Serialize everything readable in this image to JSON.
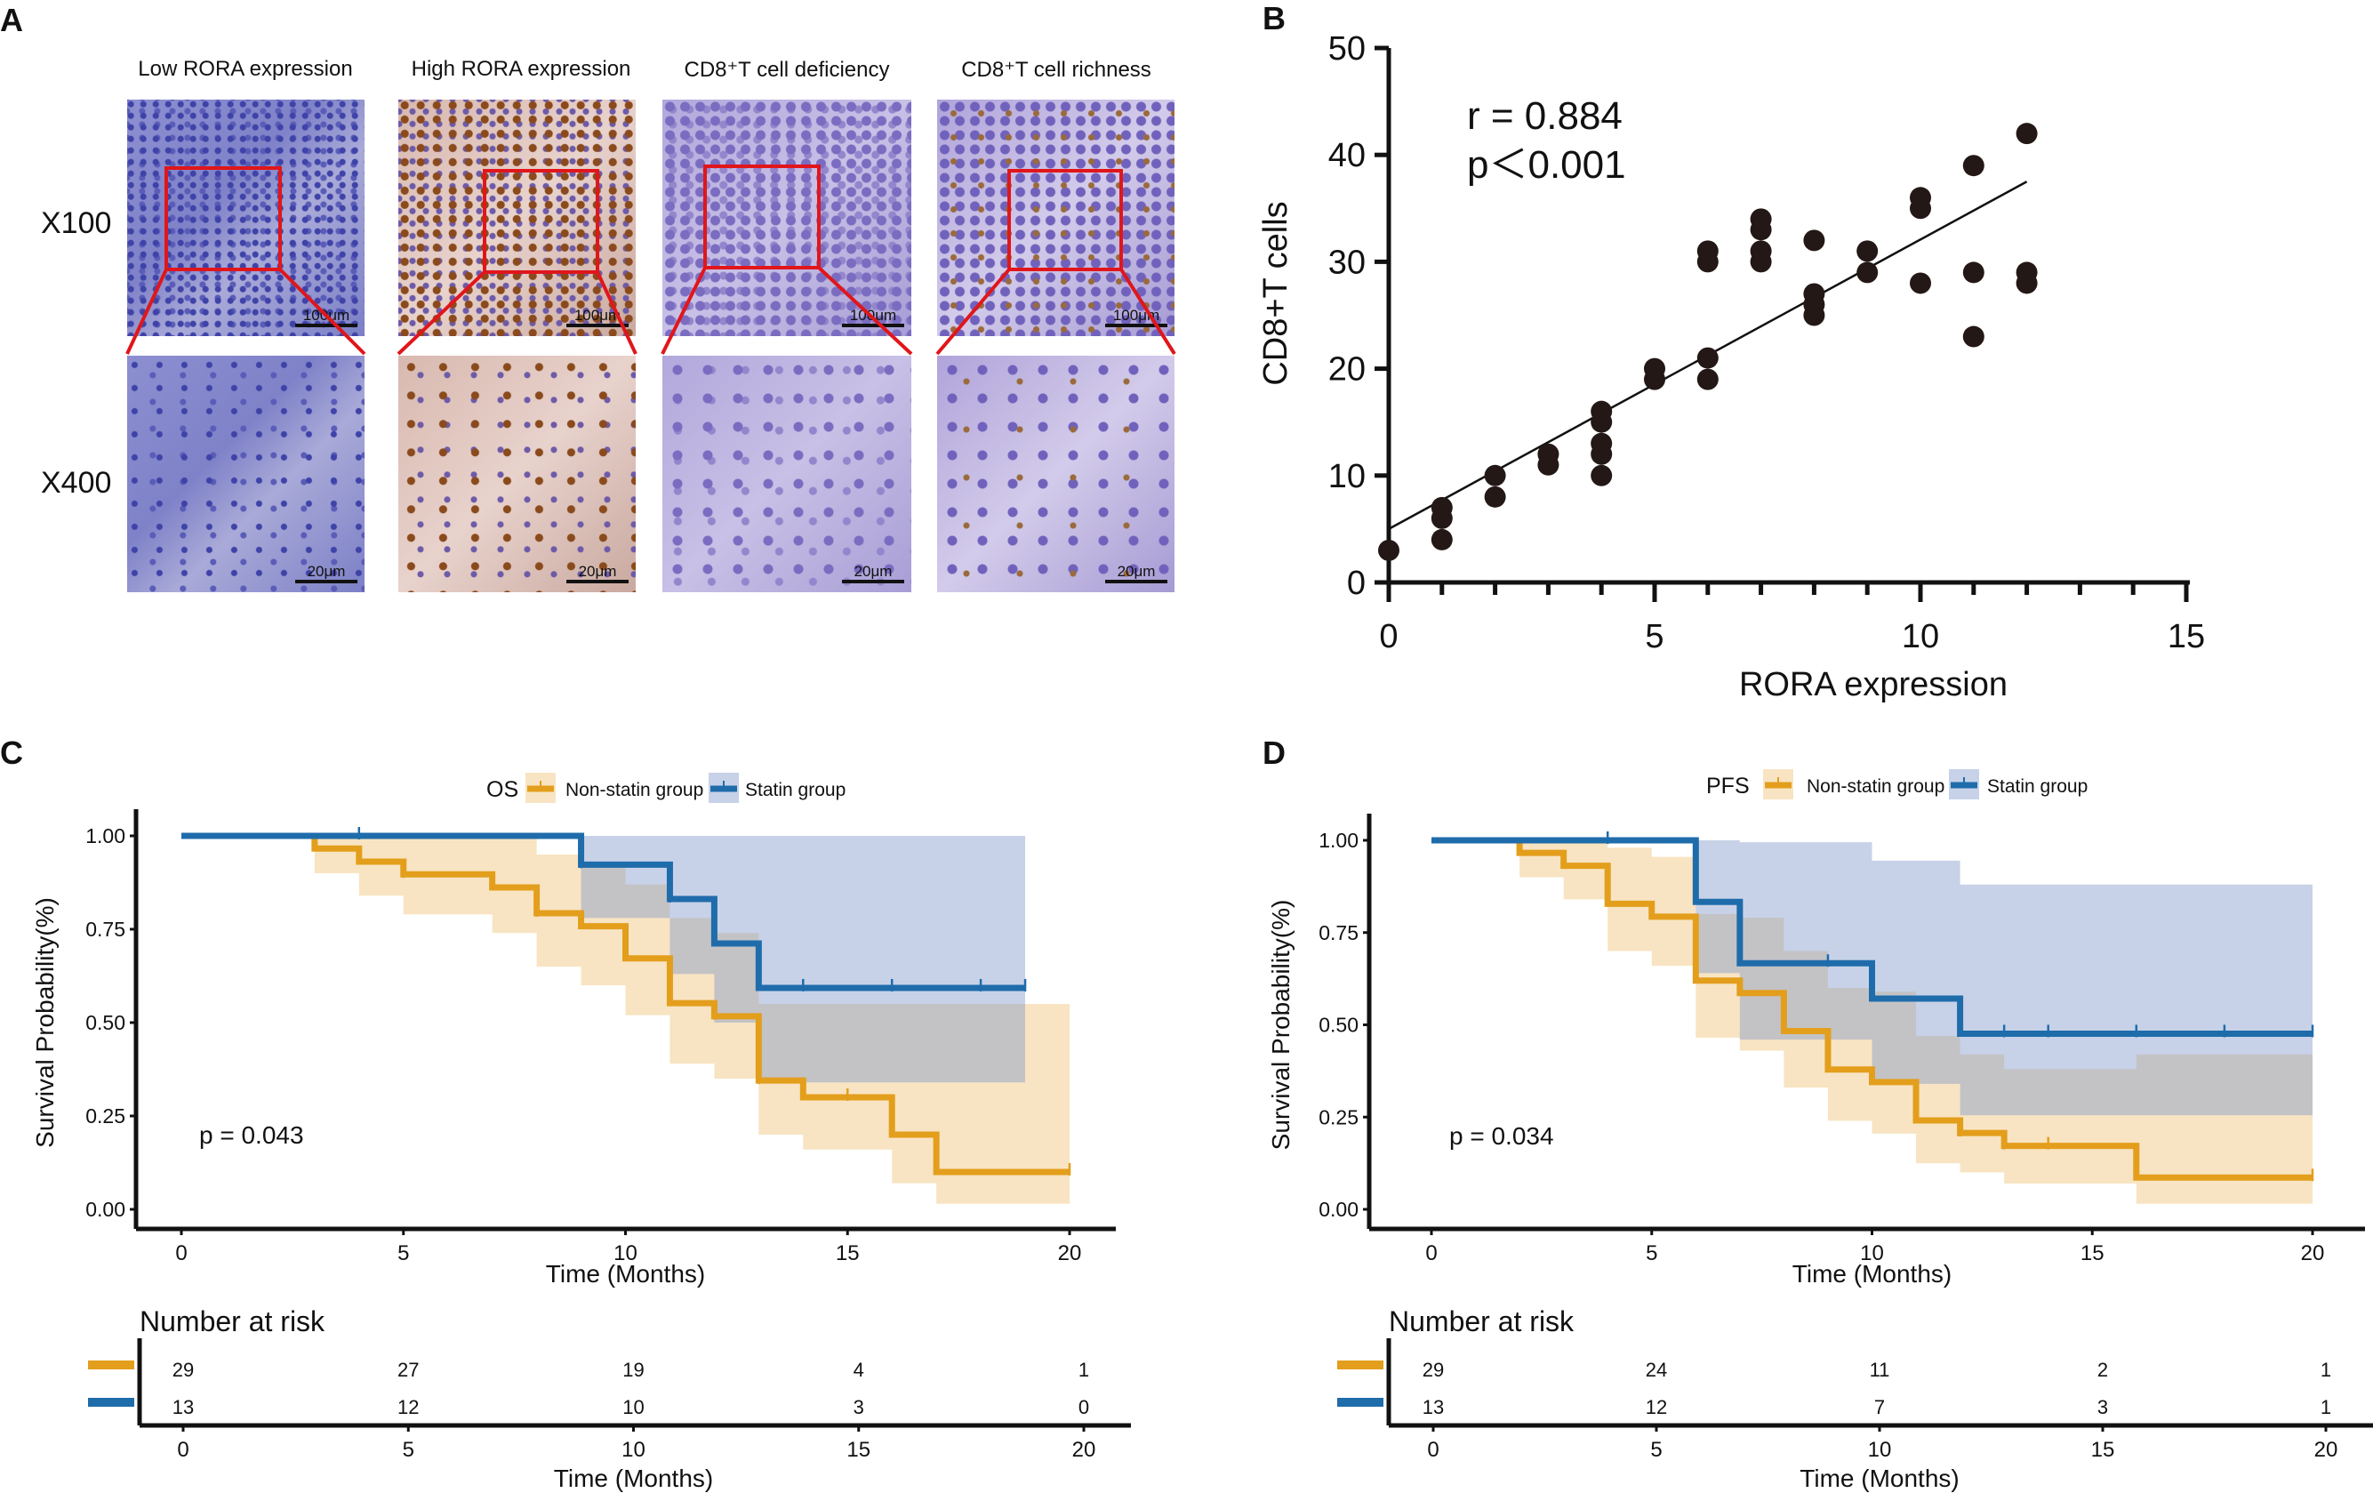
{
  "panel_letters": {
    "a": "A",
    "b": "B",
    "c": "C",
    "d": "D"
  },
  "panel_a": {
    "columns": [
      "Low RORA expression",
      "High RORA expression",
      "CD8⁺T cell deficiency",
      "CD8⁺T cell richness"
    ],
    "rows": [
      "X100",
      "X400"
    ],
    "scale_bars": {
      "x100": "100μm",
      "x400": "20μm"
    },
    "box_color": "#e0161b"
  },
  "chart_data": [
    {
      "panel": "B",
      "type": "scatter",
      "xlabel": "RORA expression",
      "ylabel": "CD8+T cells",
      "xlim": [
        0,
        15
      ],
      "ylim": [
        0,
        50
      ],
      "xticks": [
        "0",
        "5",
        "10",
        "15"
      ],
      "yticks": [
        "0",
        "10",
        "20",
        "30",
        "40",
        "50"
      ],
      "annotation": {
        "r": "r = 0.884",
        "p": "p＜0.001"
      },
      "points": [
        [
          0,
          3
        ],
        [
          1,
          7
        ],
        [
          1,
          6
        ],
        [
          1,
          4
        ],
        [
          2,
          10
        ],
        [
          2,
          8
        ],
        [
          3,
          12
        ],
        [
          3,
          11
        ],
        [
          4,
          16
        ],
        [
          4,
          15
        ],
        [
          4,
          13
        ],
        [
          4,
          12
        ],
        [
          4,
          10
        ],
        [
          5,
          20
        ],
        [
          5,
          19
        ],
        [
          6,
          31
        ],
        [
          6,
          30
        ],
        [
          6,
          21
        ],
        [
          6,
          19
        ],
        [
          7,
          34
        ],
        [
          7,
          33
        ],
        [
          7,
          31
        ],
        [
          7,
          30
        ],
        [
          8,
          32
        ],
        [
          8,
          27
        ],
        [
          8,
          26
        ],
        [
          8,
          25
        ],
        [
          9,
          31
        ],
        [
          9,
          29
        ],
        [
          10,
          36
        ],
        [
          10,
          35
        ],
        [
          10,
          28
        ],
        [
          11,
          39
        ],
        [
          11,
          29
        ],
        [
          11,
          23
        ],
        [
          12,
          42
        ],
        [
          12,
          29
        ],
        [
          12,
          28
        ]
      ],
      "fit_line": [
        [
          0,
          5
        ],
        [
          12,
          37.5
        ]
      ],
      "point_color": "#231816"
    },
    {
      "panel": "C",
      "type": "line",
      "title": "OS",
      "xlabel": "Time (Months)",
      "ylabel": "Survival Probability(%)",
      "xlim": [
        0,
        20
      ],
      "ylim": [
        0,
        1
      ],
      "xticks": [
        "0",
        "5",
        "10",
        "15",
        "20"
      ],
      "yticks": [
        "0.00",
        "0.25",
        "0.50",
        "0.75",
        "1.00"
      ],
      "pvalue": "p = 0.043",
      "series": [
        {
          "name": "Non-statin group",
          "color": "#e39e1c",
          "band": "rgba(240,196,120,0.45)",
          "end": 20,
          "steps": [
            [
              0,
              1
            ],
            [
              3,
              0.966
            ],
            [
              4,
              0.931
            ],
            [
              5,
              0.897
            ],
            [
              7,
              0.862
            ],
            [
              8,
              0.793
            ],
            [
              9,
              0.758
            ],
            [
              10,
              0.672
            ],
            [
              11,
              0.552
            ],
            [
              12,
              0.517
            ],
            [
              13,
              0.345
            ],
            [
              14,
              0.3
            ],
            [
              16,
              0.2
            ],
            [
              17,
              0.1
            ]
          ],
          "lower": [
            [
              0,
              1
            ],
            [
              3,
              0.9
            ],
            [
              4,
              0.84
            ],
            [
              5,
              0.79
            ],
            [
              7,
              0.74
            ],
            [
              8,
              0.65
            ],
            [
              9,
              0.6
            ],
            [
              10,
              0.52
            ],
            [
              11,
              0.39
            ],
            [
              12,
              0.35
            ],
            [
              13,
              0.2
            ],
            [
              14,
              0.16
            ],
            [
              16,
              0.07
            ],
            [
              17,
              0.015
            ]
          ],
          "upper": [
            [
              0,
              1
            ],
            [
              8,
              0.95
            ],
            [
              9,
              0.92
            ],
            [
              10,
              0.87
            ],
            [
              11,
              0.78
            ],
            [
              12,
              0.74
            ],
            [
              13,
              0.55
            ]
          ],
          "censored": [
            5,
            8,
            12,
            13,
            15,
            20
          ]
        },
        {
          "name": "Statin group",
          "color": "#1f6cab",
          "band": "rgba(130,155,205,0.45)",
          "end": 19,
          "steps": [
            [
              0,
              1
            ],
            [
              9,
              0.923
            ],
            [
              11,
              0.831
            ],
            [
              12,
              0.712
            ],
            [
              13,
              0.593
            ]
          ],
          "lower": [
            [
              0,
              1
            ],
            [
              9,
              0.78
            ],
            [
              11,
              0.63
            ],
            [
              12,
              0.5
            ],
            [
              13,
              0.34
            ]
          ],
          "upper": [
            [
              0,
              1
            ]
          ],
          "censored": [
            4,
            9,
            11,
            14,
            16,
            18,
            19
          ]
        }
      ],
      "risk_table": {
        "title": "Number at risk",
        "xlabel": "Time (Months)",
        "xticks": [
          "0",
          "5",
          "10",
          "15",
          "20"
        ],
        "rows": [
          [
            "29",
            "27",
            "19",
            "4",
            "1"
          ],
          [
            "13",
            "12",
            "10",
            "3",
            "0"
          ]
        ]
      }
    },
    {
      "panel": "D",
      "type": "line",
      "title": "PFS",
      "xlabel": "Time (Months)",
      "ylabel": "Survival Probability(%)",
      "xlim": [
        0,
        20
      ],
      "ylim": [
        0,
        1
      ],
      "xticks": [
        "0",
        "5",
        "10",
        "15",
        "20"
      ],
      "yticks": [
        "0.00",
        "0.25",
        "0.50",
        "0.75",
        "1.00"
      ],
      "pvalue": "p = 0.034",
      "series": [
        {
          "name": "Non-statin group",
          "color": "#e39e1c",
          "band": "rgba(240,196,120,0.45)",
          "end": 20,
          "steps": [
            [
              0,
              1
            ],
            [
              2,
              0.966
            ],
            [
              3,
              0.931
            ],
            [
              4,
              0.828
            ],
            [
              5,
              0.793
            ],
            [
              6,
              0.62
            ],
            [
              7,
              0.586
            ],
            [
              8,
              0.483
            ],
            [
              9,
              0.379
            ],
            [
              10,
              0.345
            ],
            [
              11,
              0.241
            ],
            [
              12,
              0.207
            ],
            [
              13,
              0.172
            ],
            [
              16,
              0.086
            ]
          ],
          "lower": [
            [
              0,
              1
            ],
            [
              2,
              0.9
            ],
            [
              3,
              0.84
            ],
            [
              4,
              0.7
            ],
            [
              5,
              0.66
            ],
            [
              6,
              0.465
            ],
            [
              7,
              0.43
            ],
            [
              8,
              0.33
            ],
            [
              9,
              0.24
            ],
            [
              10,
              0.205
            ],
            [
              11,
              0.125
            ],
            [
              12,
              0.1
            ],
            [
              13,
              0.07
            ],
            [
              16,
              0.015
            ]
          ],
          "upper": [
            [
              0,
              1
            ],
            [
              4,
              0.98
            ],
            [
              5,
              0.955
            ],
            [
              6,
              0.8
            ],
            [
              7,
              0.79
            ],
            [
              8,
              0.7
            ],
            [
              9,
              0.6
            ],
            [
              10,
              0.59
            ],
            [
              11,
              0.47
            ],
            [
              12,
              0.42
            ],
            [
              13,
              0.38
            ],
            [
              16,
              0.42
            ]
          ],
          "censored": [
            12,
            13,
            14,
            20
          ]
        },
        {
          "name": "Statin group",
          "color": "#1f6cab",
          "band": "rgba(130,155,205,0.45)",
          "end": 20,
          "steps": [
            [
              0,
              1
            ],
            [
              6,
              0.833
            ],
            [
              7,
              0.667
            ],
            [
              10,
              0.571
            ],
            [
              12,
              0.476
            ]
          ],
          "lower": [
            [
              0,
              1
            ],
            [
              6,
              0.64
            ],
            [
              7,
              0.46
            ],
            [
              10,
              0.34
            ],
            [
              12,
              0.255
            ]
          ],
          "upper": [
            [
              0,
              1
            ],
            [
              7,
              0.995
            ],
            [
              10,
              0.945
            ],
            [
              12,
              0.88
            ]
          ],
          "censored": [
            4,
            9,
            13,
            14,
            16,
            18,
            20
          ]
        }
      ],
      "risk_table": {
        "title": "Number at risk",
        "xlabel": "Time (Months)",
        "xticks": [
          "0",
          "5",
          "10",
          "15",
          "20"
        ],
        "rows": [
          [
            "29",
            "24",
            "11",
            "2",
            "1"
          ],
          [
            "13",
            "12",
            "7",
            "3",
            "1"
          ]
        ]
      }
    }
  ]
}
